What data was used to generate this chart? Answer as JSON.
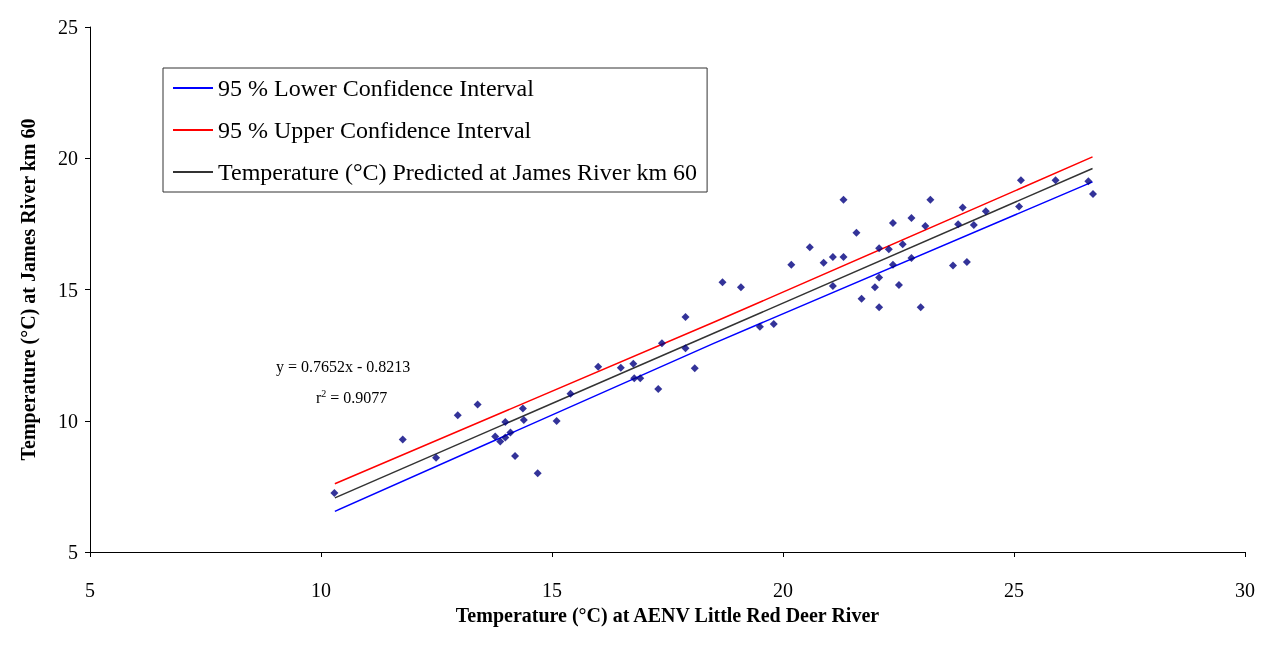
{
  "chart_data": {
    "type": "scatter",
    "xlabel": "Temperature (°C) at AENV Little Red Deer River",
    "ylabel": "Temperature (°C) at James River km 60",
    "xlim": [
      5,
      30
    ],
    "xticks": [
      5,
      10,
      15,
      20,
      25,
      30
    ],
    "ylim": [
      5,
      25
    ],
    "yticks": [
      5,
      10,
      15,
      20,
      25
    ],
    "grid": false,
    "legend": "top left",
    "annotations": [
      "y = 0.7652x - 0.8213",
      "r$^{2}$ = 0.9077"
    ],
    "series": [
      {
        "name": "95 % Lower Confidence Interval",
        "type": "line",
        "color": "#0000ff",
        "marker": "none",
        "x": [
          10.3,
          18.5,
          26.7
        ],
        "values": [
          6.55,
          12.95,
          19.1
        ]
      },
      {
        "name": "95 % Upper Confidence Interval",
        "type": "line",
        "color": "#ff0000",
        "marker": "none",
        "x": [
          10.3,
          18.5,
          26.7
        ],
        "values": [
          7.6,
          13.75,
          20.05
        ]
      },
      {
        "name": "Temperature (°C) Predicted at James River km 60",
        "type": "line",
        "color": "#333333",
        "marker": "none",
        "x": [
          10.3,
          26.7
        ],
        "values": [
          7.06,
          19.61
        ]
      },
      {
        "color": "#000080",
        "marker": "diamond",
        "x": [
          10.29,
          11.77,
          12.49,
          12.96,
          13.39,
          13.77,
          13.88,
          13.99,
          13.99,
          14.1,
          14.2,
          14.37,
          14.39,
          14.69,
          15.1,
          15.4,
          16.0,
          16.49,
          16.76,
          16.78,
          16.91,
          17.3,
          17.38,
          17.89,
          17.89,
          18.09,
          18.69,
          19.09,
          19.5,
          19.8,
          20.18,
          20.58,
          20.88,
          21.08,
          21.08,
          21.31,
          21.31,
          21.59,
          21.7,
          21.99,
          22.08,
          22.08,
          22.08,
          22.29,
          22.38,
          22.38,
          22.51,
          22.59,
          22.78,
          22.78,
          22.98,
          23.08,
          23.19,
          23.68,
          23.79,
          23.89,
          23.98,
          24.13,
          24.39,
          25.11,
          25.15,
          25.9,
          26.61,
          26.71
        ],
        "values": [
          7.25,
          9.29,
          8.59,
          10.21,
          10.62,
          9.4,
          9.21,
          9.36,
          9.95,
          9.55,
          8.66,
          10.47,
          10.03,
          8.0,
          9.99,
          11.03,
          12.06,
          12.02,
          12.17,
          11.62,
          11.62,
          11.21,
          12.95,
          12.76,
          13.95,
          12.0,
          15.28,
          15.09,
          13.58,
          13.69,
          15.94,
          16.61,
          16.02,
          16.24,
          15.13,
          16.24,
          18.42,
          17.16,
          14.65,
          15.09,
          16.57,
          15.46,
          14.32,
          16.53,
          17.53,
          15.94,
          15.17,
          16.72,
          17.72,
          16.2,
          14.32,
          17.42,
          18.42,
          15.91,
          17.49,
          18.12,
          16.05,
          17.46,
          17.98,
          18.16,
          19.16,
          19.16,
          19.12,
          18.64
        ]
      }
    ]
  }
}
